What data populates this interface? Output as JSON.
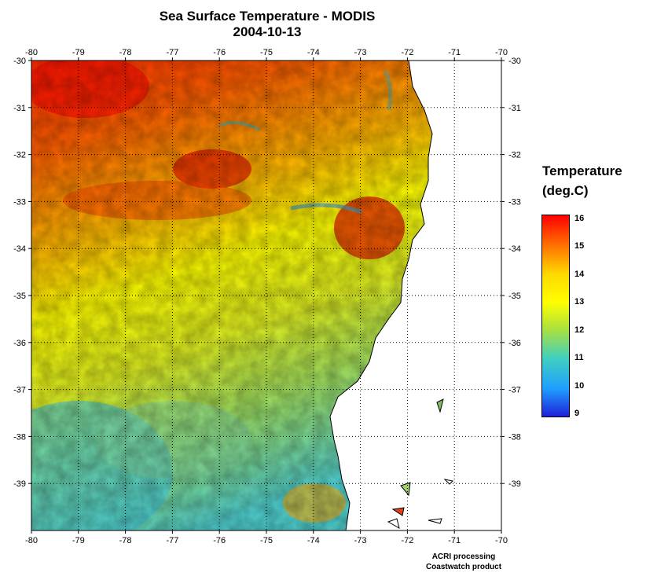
{
  "header": {
    "title": "Sea Surface Temperature - MODIS",
    "date": "2004-10-13"
  },
  "map": {
    "longitude_ticks": [
      "-80",
      "-79",
      "-78",
      "-77",
      "-76",
      "-75",
      "-74",
      "-73",
      "-72",
      "-71",
      "-70"
    ],
    "latitude_ticks": [
      "-30",
      "-31",
      "-32",
      "-33",
      "-34",
      "-35",
      "-36",
      "-37",
      "-38",
      "-39"
    ],
    "lon_range": [
      -80,
      -70
    ],
    "lat_range": [
      -40,
      -30
    ],
    "grid": "dotted",
    "land_color": "#ffffff",
    "coastline_color": "#000000"
  },
  "legend": {
    "title_line1": "Temperature",
    "title_line2": "(deg.C)",
    "ticks": [
      "16",
      "15",
      "14",
      "13",
      "12",
      "11",
      "10",
      "9"
    ],
    "range": [
      9,
      16
    ],
    "colors": [
      "#ff0000",
      "#ff6a00",
      "#ffd800",
      "#ffff00",
      "#a8e040",
      "#40d0c0",
      "#1ea0ff",
      "#2020d8"
    ]
  },
  "footer": {
    "line1": "ACRI processing",
    "line2": "Coastwatch product"
  }
}
